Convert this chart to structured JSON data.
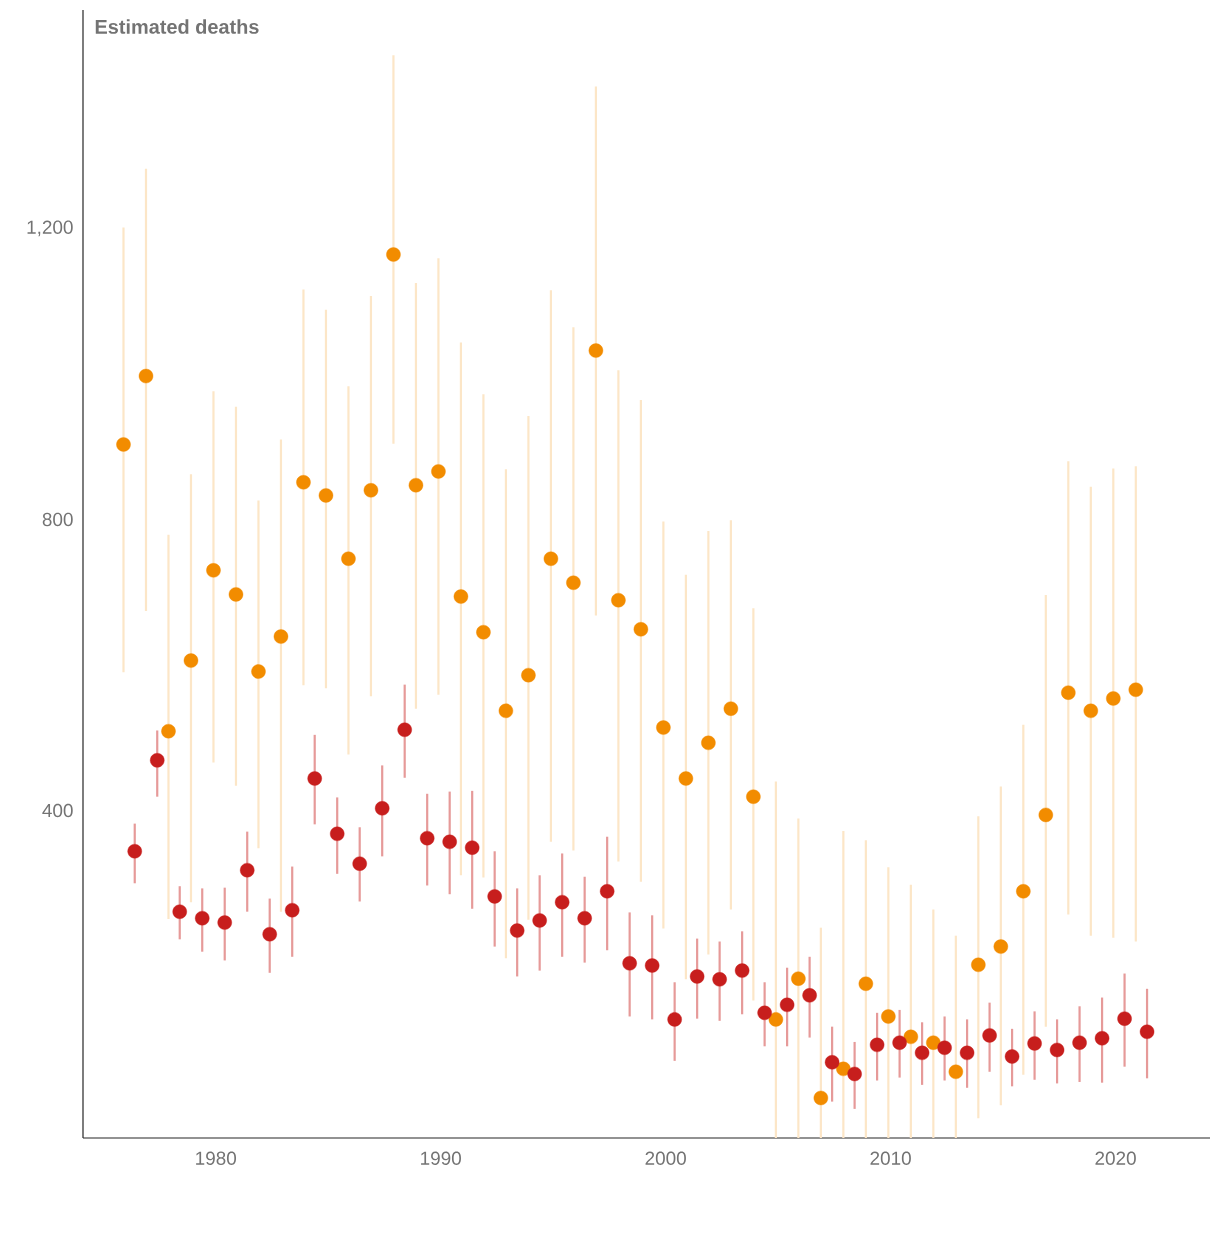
{
  "chart_data": {
    "type": "scatter",
    "ylabel": "Estimated deaths",
    "xlim": [
      1974.1,
      2024.2
    ],
    "xticks": [
      1980,
      1990,
      2000,
      2010,
      2020
    ],
    "ylim": [
      -50,
      1500
    ],
    "yticks": [
      400,
      800,
      {
        "value": 1200,
        "label": "1,200"
      }
    ],
    "marker": "circle",
    "series": [
      {
        "color": "#f28c00",
        "x": [
          1975.9,
          1976.9,
          1977.9,
          1978.9,
          1979.9,
          1980.9,
          1981.9,
          1982.9,
          1983.9,
          1984.9,
          1985.9,
          1986.9,
          1987.9,
          1988.9,
          1989.9,
          1990.9,
          1991.9,
          1992.9,
          1993.9,
          1994.9,
          1995.9,
          1996.9,
          1997.9,
          1998.9,
          1999.9,
          2000.9,
          2001.9,
          2002.9,
          2003.9,
          2004.9,
          2005.9,
          2006.9,
          2007.9,
          2008.9,
          2009.9,
          2010.9,
          2011.9,
          2012.9,
          2013.9,
          2014.9,
          2015.9,
          2016.9,
          2017.9,
          2018.9,
          2019.9,
          2020.9
        ],
        "values": [
          903,
          997,
          509,
          606,
          730,
          697,
          591,
          639,
          851,
          833,
          746,
          840,
          1164,
          847,
          866,
          694,
          645,
          537,
          586,
          746,
          713,
          1032,
          689,
          649,
          514,
          444,
          493,
          540,
          419,
          113,
          169,
          5,
          45,
          162,
          117,
          89,
          81,
          41,
          188,
          213,
          289,
          394,
          562,
          537,
          554,
          566
        ],
        "errors": [
          [
            590,
            1201
          ],
          [
            674,
            1282
          ],
          [
            251,
            779
          ],
          [
            274,
            862
          ],
          [
            466,
            976
          ],
          [
            434,
            955
          ],
          [
            348,
            826
          ],
          [
            261,
            910
          ],
          [
            572,
            1116
          ],
          [
            568,
            1088
          ],
          [
            477,
            983
          ],
          [
            557,
            1107
          ],
          [
            904,
            1438
          ],
          [
            540,
            1125
          ],
          [
            559,
            1159
          ],
          [
            311,
            1043
          ],
          [
            308,
            972
          ],
          [
            197,
            869
          ],
          [
            250,
            942
          ],
          [
            357,
            1115
          ],
          [
            345,
            1064
          ],
          [
            668,
            1395
          ],
          [
            330,
            1005
          ],
          [
            302,
            964
          ],
          [
            238,
            797
          ],
          [
            168,
            724
          ],
          [
            202,
            784
          ],
          [
            264,
            799
          ],
          [
            139,
            678
          ],
          [
            -50,
            440
          ],
          [
            -50,
            389
          ],
          [
            -50,
            239
          ],
          [
            -50,
            372
          ],
          [
            -50,
            359
          ],
          [
            -50,
            322
          ],
          [
            -50,
            298
          ],
          [
            -50,
            264
          ],
          [
            -50,
            228
          ],
          [
            -23,
            392
          ],
          [
            -5,
            433
          ],
          [
            37,
            518
          ],
          [
            103,
            696
          ],
          [
            257,
            880
          ],
          [
            228,
            845
          ],
          [
            225,
            870
          ],
          [
            220,
            873
          ]
        ]
      },
      {
        "color": "#c71e1d",
        "x": [
          1976.4,
          1977.4,
          1978.4,
          1979.4,
          1980.4,
          1981.4,
          1982.4,
          1983.4,
          1984.4,
          1985.4,
          1986.4,
          1987.4,
          1988.4,
          1989.4,
          1990.4,
          1991.4,
          1992.4,
          1993.4,
          1994.4,
          1995.4,
          1996.4,
          1997.4,
          1998.4,
          1999.4,
          2000.4,
          2001.4,
          2002.4,
          2003.4,
          2004.4,
          2005.4,
          2006.4,
          2007.4,
          2008.4,
          2009.4,
          2010.4,
          2011.4,
          2012.4,
          2013.4,
          2014.4,
          2015.4,
          2016.4,
          2017.4,
          2018.4,
          2019.4,
          2020.4,
          2021.4
        ],
        "values": [
          344,
          469,
          261,
          252,
          246,
          318,
          230,
          263,
          444,
          368,
          327,
          403,
          511,
          362,
          357,
          349,
          282,
          235,
          249,
          274,
          252,
          289,
          190,
          187,
          113,
          172,
          168,
          180,
          122,
          133,
          146,
          54,
          38,
          78,
          81,
          67,
          74,
          67,
          91,
          62,
          80,
          71,
          81,
          87,
          114,
          96
        ],
        "errors": [
          [
            300,
            382
          ],
          [
            419,
            510
          ],
          [
            223,
            296
          ],
          [
            206,
            293
          ],
          [
            194,
            294
          ],
          [
            261,
            371
          ],
          [
            177,
            279
          ],
          [
            199,
            323
          ],
          [
            381,
            504
          ],
          [
            313,
            418
          ],
          [
            275,
            377
          ],
          [
            337,
            462
          ],
          [
            445,
            573
          ],
          [
            297,
            423
          ],
          [
            285,
            426
          ],
          [
            265,
            427
          ],
          [
            213,
            344
          ],
          [
            172,
            293
          ],
          [
            180,
            311
          ],
          [
            199,
            341
          ],
          [
            191,
            309
          ],
          [
            208,
            364
          ],
          [
            117,
            260
          ],
          [
            113,
            256
          ],
          [
            56,
            164
          ],
          [
            114,
            224
          ],
          [
            111,
            220
          ],
          [
            120,
            234
          ],
          [
            76,
            164
          ],
          [
            76,
            184
          ],
          [
            88,
            199
          ],
          [
            0,
            103
          ],
          [
            -10,
            82
          ],
          [
            29,
            122
          ],
          [
            33,
            126
          ],
          [
            23,
            109
          ],
          [
            29,
            117
          ],
          [
            19,
            113
          ],
          [
            41,
            136
          ],
          [
            21,
            100
          ],
          [
            30,
            124
          ],
          [
            25,
            113
          ],
          [
            27,
            131
          ],
          [
            26,
            143
          ],
          [
            48,
            176
          ],
          [
            32,
            155
          ]
        ]
      }
    ]
  }
}
